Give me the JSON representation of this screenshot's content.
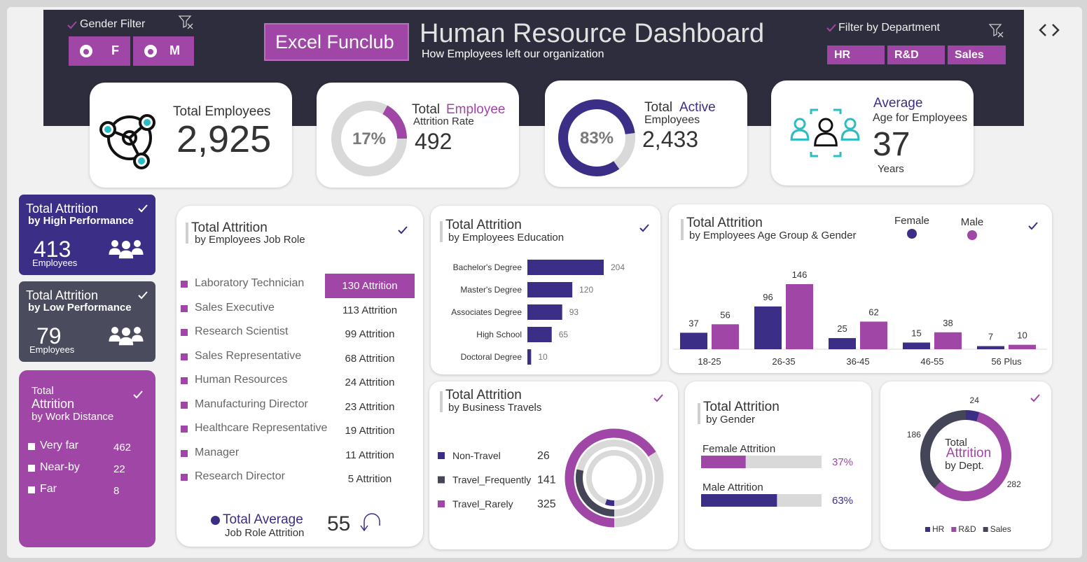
{
  "header": {
    "gender_filter": "Gender Filter",
    "gender_buttons": [
      "F",
      "M"
    ],
    "brand": "Excel Funclub",
    "title": "Human Resource Dashboard",
    "subtitle": "How Employees left our organization",
    "department_filter": "Filter by Department",
    "department_buttons": [
      "HR",
      "R&D",
      "Sales"
    ]
  },
  "kpis": {
    "total_employees": {
      "label": "Total Employees",
      "value": "2,925"
    },
    "attrition": {
      "label_start": "Total",
      "label_highlight": "Employee",
      "sublabel": "Attrition Rate",
      "value": "492"
    },
    "active": {
      "label_start": "Total",
      "label_highlight": "Active",
      "sublabel": "Employees",
      "value": "2,433"
    },
    "average_age": {
      "label": "Average",
      "sublabel": "Age for Employees",
      "value": "37",
      "unit": "Years"
    }
  },
  "performance_cards": [
    {
      "title": "Total Attrition",
      "subtitle": "by High Performance",
      "value": "413",
      "unit": "Employees"
    },
    {
      "title": "Total Attrition",
      "subtitle": "by Low Performance",
      "value": "79",
      "unit": "Employees"
    }
  ],
  "work_distance": {
    "title_1": "Total",
    "title_2": "Attrition",
    "subtitle": "by Work Distance",
    "rows": [
      [
        "Very far",
        "462"
      ],
      [
        "Near-by",
        "22"
      ],
      [
        "Far",
        "8"
      ]
    ]
  },
  "job_role": {
    "title": "Total Attrition",
    "subtitle": "by Employees Job Role",
    "rows": [
      [
        "Laboratory Technician",
        "130 Attrition"
      ],
      [
        "Sales Executive",
        "113 Attrition"
      ],
      [
        "Research Scientist",
        "99 Attrition"
      ],
      [
        "Sales Representative",
        "68 Attrition"
      ],
      [
        "Human Resources",
        "24 Attrition"
      ],
      [
        "Manufacturing Director",
        "23 Attrition"
      ],
      [
        "Healthcare Representative",
        "19 Attrition"
      ],
      [
        "Manager",
        "11 Attrition"
      ],
      [
        "Research Director",
        "5 Attrition"
      ]
    ],
    "footer_title": "Total Average",
    "footer_subtitle": "Job Role Attrition",
    "footer_value": "55"
  },
  "chart_data": [
    {
      "type": "donut",
      "values": [
        17,
        83
      ],
      "value_labels": [
        "17%",
        null
      ],
      "colors": [
        "#a046a6",
        "#d9d9d9"
      ]
    },
    {
      "type": "donut",
      "values": [
        83,
        17
      ],
      "value_labels": [
        "83%",
        null
      ],
      "colors": [
        "#3b2e87",
        "#d9d9d9"
      ]
    },
    {
      "type": "hbar",
      "title": "Total Attrition",
      "subtitle": "by Employees Education",
      "categories": [
        "Bachelor's Degree",
        "Master's Degree",
        "Associates Degree",
        "High School",
        "Doctoral Degree"
      ],
      "values": [
        204,
        120,
        93,
        65,
        10
      ],
      "color": "#3b2e87"
    },
    {
      "type": "bar",
      "title": "Total Attrition",
      "subtitle": "by Employees Age Group & Gender",
      "categories": [
        "18-25",
        "26-35",
        "36-45",
        "46-55",
        "56 Plus"
      ],
      "series": [
        {
          "name": "Female",
          "color": "#3b2e87",
          "values": [
            37,
            96,
            25,
            15,
            7
          ]
        },
        {
          "name": "Male",
          "color": "#a046a6",
          "values": [
            56,
            146,
            62,
            38,
            10
          ]
        }
      ]
    },
    {
      "type": "radial",
      "title": "Total Attrition",
      "subtitle": "by Business Travels",
      "categories": [
        "Non-Travel",
        "Travel_Frequently",
        "Travel_Rarely"
      ],
      "values": [
        26,
        141,
        325
      ],
      "colors": [
        "#3b2e87",
        "#444556",
        "#a046a6"
      ]
    },
    {
      "type": "progress",
      "title": "Total Attrition",
      "subtitle": "by Gender",
      "categories": [
        "Female Attrition",
        "Male Attrition"
      ],
      "values": [
        37,
        63
      ],
      "value_labels": [
        "37%",
        "63%"
      ],
      "colors": [
        "#a046a6",
        "#3b2e87"
      ],
      "xlim": [
        0,
        100
      ]
    },
    {
      "type": "donut",
      "center_text": [
        "Total",
        "Attrition",
        "by Dept."
      ],
      "categories": [
        "HR",
        "R&D",
        "Sales"
      ],
      "values": [
        24,
        282,
        186
      ],
      "colors": [
        "#3b2e87",
        "#a046a6",
        "#444556"
      ]
    }
  ]
}
